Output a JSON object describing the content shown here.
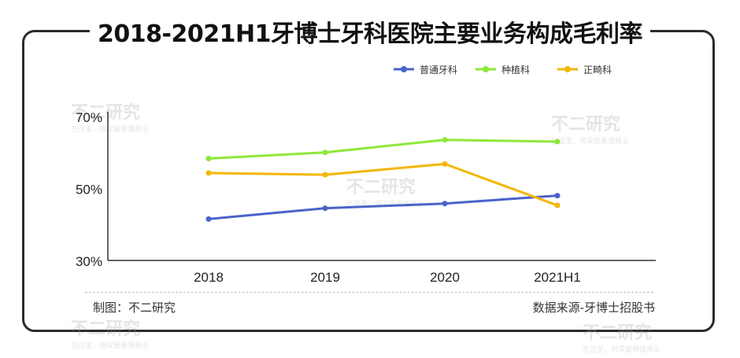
{
  "page": {
    "title": "2018-2021H1牙博士牙科医院主要业务构成毛利率",
    "credit": "制图：不二研究",
    "source": "数据来源-牙博士招股书",
    "watermark_main": "不二研究",
    "watermark_sub": "在这里，用深度看懂商业"
  },
  "chart_data": {
    "type": "line",
    "categories": [
      "2018",
      "2019",
      "2020",
      "2021H1"
    ],
    "series": [
      {
        "name": "普通牙科",
        "color": "#4a63c9",
        "values": [
          41.5,
          44.5,
          45.8,
          48.0
        ]
      },
      {
        "name": "种植科",
        "color": "#8de83a",
        "values": [
          58.3,
          60.0,
          63.5,
          63.0
        ]
      },
      {
        "name": "正畸科",
        "color": "#f2b705",
        "values": [
          54.3,
          53.8,
          56.8,
          45.3
        ]
      }
    ],
    "yticks": [
      "70%",
      "50%",
      "30%"
    ],
    "ylim": [
      30,
      70
    ],
    "legend_position": "top-right",
    "grid": false
  }
}
